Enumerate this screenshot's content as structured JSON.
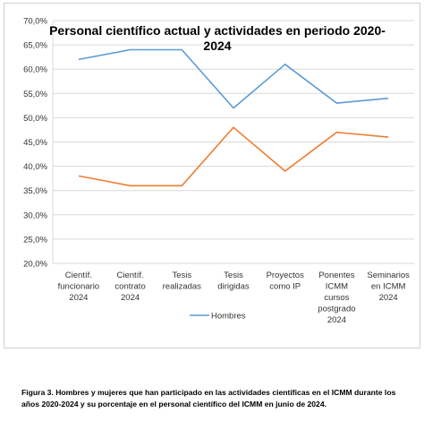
{
  "chart_data": {
    "type": "line",
    "title": "Personal científico actual y actividades en periodo 2020-2024",
    "title_lines": [
      "Personal científico actual y actividades en periodo 2020-",
      "2024"
    ],
    "categories": [
      [
        "Científ.",
        "funcionario",
        "2024"
      ],
      [
        "Científ.",
        "contrato",
        "2024"
      ],
      [
        "Tesis",
        "realizadas"
      ],
      [
        "Tesis",
        "dirigidas"
      ],
      [
        "Proyectos",
        "como IP"
      ],
      [
        "Ponentes",
        "ICMM",
        "cursos",
        "postgrado",
        "2024"
      ],
      [
        "Seminarios",
        "en ICMM",
        "2024"
      ]
    ],
    "y_ticks": [
      "20,0%",
      "25,0%",
      "30,0%",
      "35,0%",
      "40,0%",
      "45,0%",
      "50,0%",
      "55,0%",
      "60,0%",
      "65,0%",
      "70,0%"
    ],
    "ylim": [
      20,
      70
    ],
    "series": [
      {
        "name": "Hombres",
        "color": "#5b9bd5",
        "values": [
          62,
          64,
          64,
          52,
          61,
          53,
          54
        ]
      },
      {
        "name": "",
        "color": "#ed7d31",
        "values": [
          38,
          36,
          36,
          48,
          39,
          47,
          46
        ]
      }
    ],
    "legend": {
      "position": "bottom",
      "entries": [
        "Hombres"
      ]
    },
    "grid": true
  },
  "caption": "Figura 3. Hombres y mujeres que han participado en las actividades científicas en el ICMM durante los años 2020-2024 y su porcentaje en el personal científico del ICMM en junio de 2024."
}
